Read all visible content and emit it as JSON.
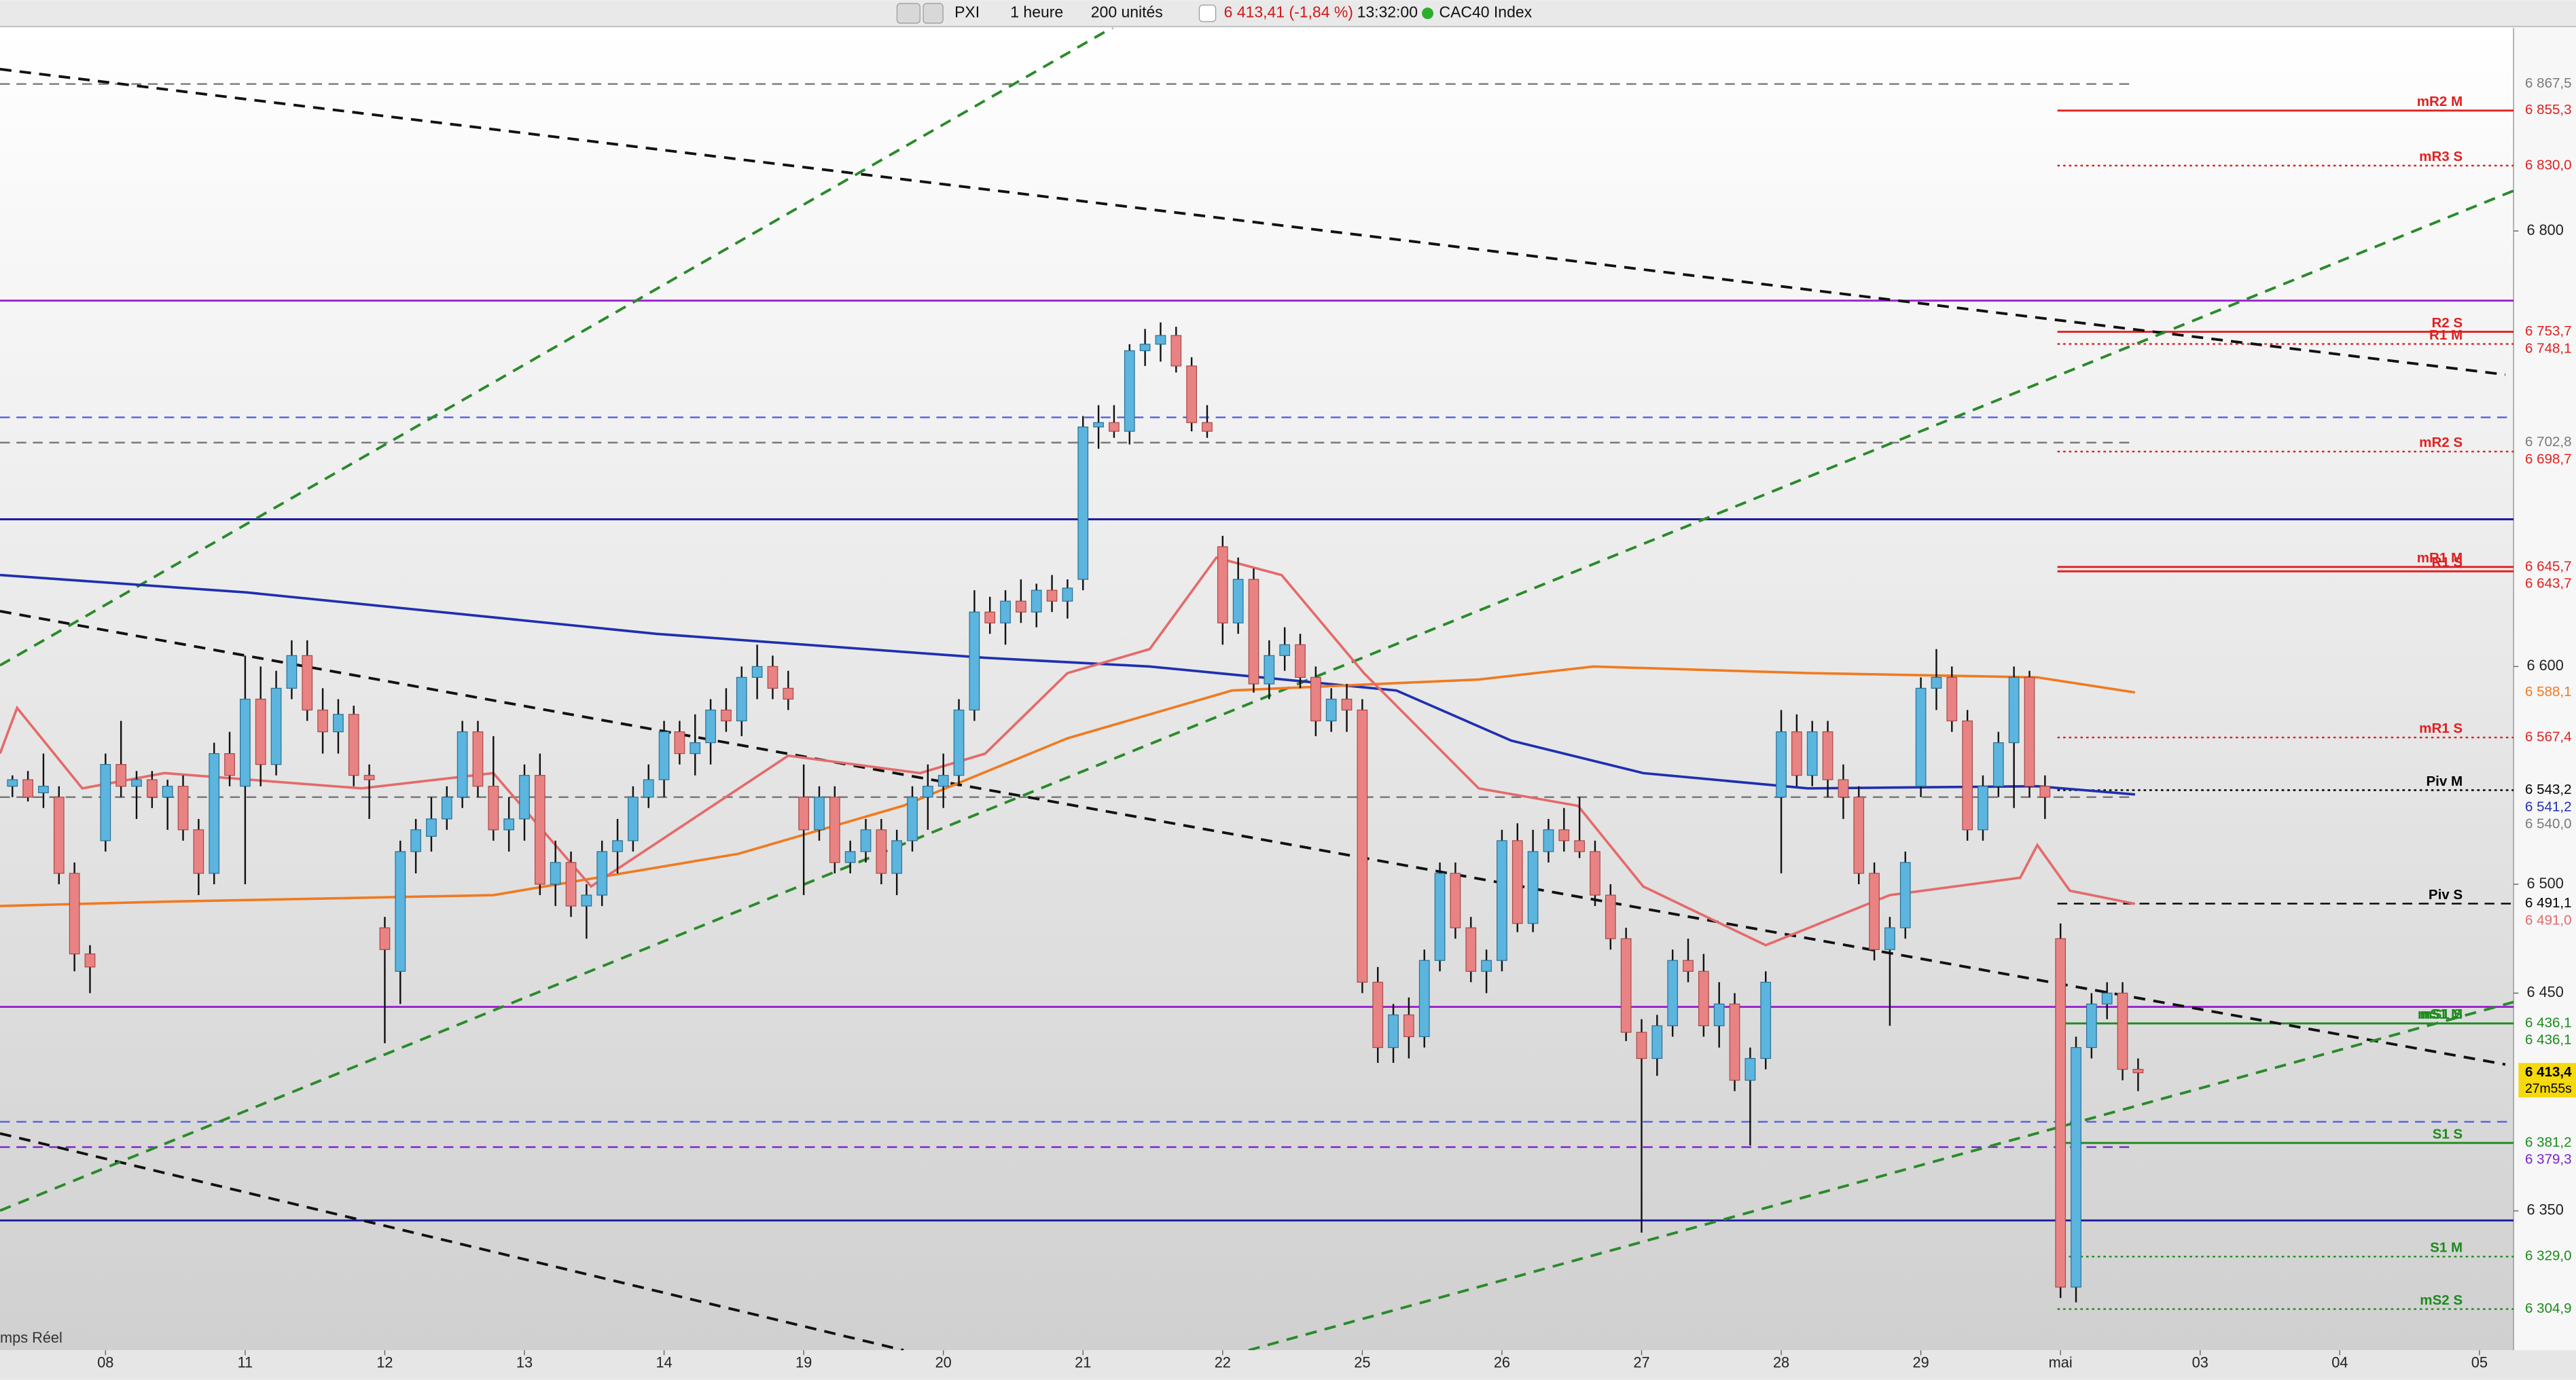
{
  "toolbar": {
    "symbol": "PXI",
    "interval": "1 heure",
    "units": "200 unités",
    "quote": "6 413,41 (-1,84 %)",
    "time": "13:32:00",
    "instrument": "CAC40 Index"
  },
  "status": "mps Réel",
  "chart_data": {
    "type": "candlestick",
    "ylim": [
      6286,
      6892.4
    ],
    "xlim": [
      -0.8,
      161.2
    ],
    "yticks": [
      {
        "value": 6350,
        "label": "6 350"
      },
      {
        "value": 6450,
        "label": "6 450"
      },
      {
        "value": 6500,
        "label": "6 500"
      },
      {
        "value": 6600,
        "label": "6 600"
      },
      {
        "value": 6800,
        "label": "6 800"
      }
    ],
    "xticks": [
      {
        "value": 6,
        "label": "08"
      },
      {
        "value": 15,
        "label": "11"
      },
      {
        "value": 24,
        "label": "12"
      },
      {
        "value": 33,
        "label": "13"
      },
      {
        "value": 42,
        "label": "14"
      },
      {
        "value": 51,
        "label": "19"
      },
      {
        "value": 60,
        "label": "20"
      },
      {
        "value": 69,
        "label": "21"
      },
      {
        "value": 78,
        "label": "22"
      },
      {
        "value": 87,
        "label": "25"
      },
      {
        "value": 96,
        "label": "26"
      },
      {
        "value": 105,
        "label": "27"
      },
      {
        "value": 114,
        "label": "28"
      },
      {
        "value": 123,
        "label": "29"
      },
      {
        "value": 132,
        "label": "mai"
      },
      {
        "value": 141,
        "label": "03"
      },
      {
        "value": 150,
        "label": "04"
      },
      {
        "value": 159,
        "label": "05"
      }
    ],
    "up_color": "#5bb5de",
    "down_color": "#e98383",
    "candles": [
      [
        6545,
        6550,
        6540,
        6548
      ],
      [
        6548,
        6552,
        6538,
        6540
      ],
      [
        6542,
        6560,
        6535,
        6545
      ],
      [
        6540,
        6545,
        6500,
        6505
      ],
      [
        6505,
        6510,
        6460,
        6468
      ],
      [
        6468,
        6472,
        6450,
        6462
      ],
      [
        6520,
        6560,
        6515,
        6555
      ],
      [
        6555,
        6575,
        6540,
        6545
      ],
      [
        6545,
        6552,
        6530,
        6548
      ],
      [
        6548,
        6552,
        6535,
        6540
      ],
      [
        6540,
        6548,
        6525,
        6545
      ],
      [
        6545,
        6550,
        6520,
        6525
      ],
      [
        6525,
        6530,
        6495,
        6505
      ],
      [
        6505,
        6565,
        6500,
        6560
      ],
      [
        6560,
        6570,
        6545,
        6550
      ],
      [
        6545,
        6605,
        6500,
        6585
      ],
      [
        6585,
        6600,
        6545,
        6555
      ],
      [
        6555,
        6598,
        6550,
        6590
      ],
      [
        6590,
        6612,
        6585,
        6605
      ],
      [
        6605,
        6612,
        6575,
        6580
      ],
      [
        6580,
        6590,
        6560,
        6570
      ],
      [
        6570,
        6585,
        6560,
        6578
      ],
      [
        6578,
        6582,
        6545,
        6550
      ],
      [
        6550,
        6555,
        6530,
        6548
      ],
      [
        6480,
        6485,
        6427,
        6470
      ],
      [
        6460,
        6520,
        6445,
        6515
      ],
      [
        6515,
        6530,
        6505,
        6525
      ],
      [
        6522,
        6540,
        6515,
        6530
      ],
      [
        6530,
        6545,
        6525,
        6540
      ],
      [
        6540,
        6575,
        6535,
        6570
      ],
      [
        6570,
        6575,
        6540,
        6545
      ],
      [
        6545,
        6568,
        6520,
        6525
      ],
      [
        6525,
        6540,
        6515,
        6530
      ],
      [
        6530,
        6555,
        6520,
        6550
      ],
      [
        6550,
        6560,
        6495,
        6500
      ],
      [
        6500,
        6520,
        6490,
        6510
      ],
      [
        6510,
        6515,
        6485,
        6490
      ],
      [
        6490,
        6500,
        6475,
        6495
      ],
      [
        6495,
        6520,
        6490,
        6515
      ],
      [
        6515,
        6530,
        6505,
        6520
      ],
      [
        6520,
        6545,
        6515,
        6540
      ],
      [
        6540,
        6555,
        6535,
        6548
      ],
      [
        6548,
        6575,
        6540,
        6570
      ],
      [
        6570,
        6575,
        6555,
        6560
      ],
      [
        6560,
        6578,
        6550,
        6565
      ],
      [
        6565,
        6585,
        6555,
        6580
      ],
      [
        6580,
        6590,
        6570,
        6575
      ],
      [
        6575,
        6600,
        6568,
        6595
      ],
      [
        6595,
        6610,
        6585,
        6600
      ],
      [
        6600,
        6605,
        6585,
        6590
      ],
      [
        6590,
        6598,
        6580,
        6585
      ],
      [
        6540,
        6555,
        6495,
        6525
      ],
      [
        6525,
        6545,
        6520,
        6540
      ],
      [
        6540,
        6545,
        6505,
        6510
      ],
      [
        6510,
        6520,
        6505,
        6515
      ],
      [
        6515,
        6530,
        6510,
        6525
      ],
      [
        6525,
        6530,
        6500,
        6505
      ],
      [
        6505,
        6525,
        6495,
        6520
      ],
      [
        6520,
        6545,
        6515,
        6540
      ],
      [
        6540,
        6555,
        6525,
        6545
      ],
      [
        6545,
        6560,
        6535,
        6550
      ],
      [
        6550,
        6585,
        6545,
        6580
      ],
      [
        6580,
        6635,
        6575,
        6625
      ],
      [
        6625,
        6632,
        6615,
        6620
      ],
      [
        6620,
        6635,
        6610,
        6630
      ],
      [
        6630,
        6640,
        6620,
        6625
      ],
      [
        6625,
        6638,
        6618,
        6635
      ],
      [
        6635,
        6642,
        6625,
        6630
      ],
      [
        6630,
        6640,
        6622,
        6636
      ],
      [
        6640,
        6715,
        6635,
        6710
      ],
      [
        6710,
        6720,
        6700,
        6712
      ],
      [
        6712,
        6720,
        6705,
        6708
      ],
      [
        6708,
        6748,
        6702,
        6745
      ],
      [
        6745,
        6755,
        6738,
        6748
      ],
      [
        6748,
        6758,
        6740,
        6752
      ],
      [
        6752,
        6756,
        6735,
        6738
      ],
      [
        6738,
        6742,
        6708,
        6712
      ],
      [
        6712,
        6720,
        6705,
        6708
      ],
      [
        6655,
        6660,
        6610,
        6620
      ],
      [
        6620,
        6650,
        6615,
        6640
      ],
      [
        6640,
        6645,
        6588,
        6592
      ],
      [
        6592,
        6612,
        6585,
        6605
      ],
      [
        6605,
        6618,
        6598,
        6610
      ],
      [
        6610,
        6615,
        6590,
        6595
      ],
      [
        6595,
        6600,
        6568,
        6575
      ],
      [
        6575,
        6590,
        6570,
        6585
      ],
      [
        6585,
        6592,
        6570,
        6580
      ],
      [
        6580,
        6585,
        6450,
        6455
      ],
      [
        6455,
        6462,
        6418,
        6425
      ],
      [
        6425,
        6445,
        6418,
        6440
      ],
      [
        6440,
        6448,
        6420,
        6430
      ],
      [
        6430,
        6470,
        6425,
        6465
      ],
      [
        6465,
        6510,
        6460,
        6505
      ],
      [
        6505,
        6510,
        6475,
        6480
      ],
      [
        6480,
        6485,
        6455,
        6460
      ],
      [
        6460,
        6470,
        6450,
        6465
      ],
      [
        6465,
        6525,
        6460,
        6520
      ],
      [
        6520,
        6528,
        6478,
        6482
      ],
      [
        6482,
        6525,
        6478,
        6515
      ],
      [
        6515,
        6530,
        6510,
        6525
      ],
      [
        6525,
        6535,
        6515,
        6520
      ],
      [
        6520,
        6540,
        6512,
        6515
      ],
      [
        6515,
        6520,
        6490,
        6495
      ],
      [
        6495,
        6500,
        6470,
        6475
      ],
      [
        6475,
        6480,
        6428,
        6432
      ],
      [
        6432,
        6438,
        6340,
        6420
      ],
      [
        6420,
        6440,
        6412,
        6435
      ],
      [
        6435,
        6470,
        6430,
        6465
      ],
      [
        6465,
        6475,
        6455,
        6460
      ],
      [
        6460,
        6468,
        6430,
        6435
      ],
      [
        6435,
        6455,
        6425,
        6445
      ],
      [
        6445,
        6450,
        6405,
        6410
      ],
      [
        6410,
        6425,
        6380,
        6420
      ],
      [
        6420,
        6460,
        6415,
        6455
      ],
      [
        6540,
        6580,
        6505,
        6570
      ],
      [
        6570,
        6578,
        6545,
        6550
      ],
      [
        6550,
        6575,
        6545,
        6570
      ],
      [
        6570,
        6575,
        6540,
        6548
      ],
      [
        6548,
        6555,
        6530,
        6540
      ],
      [
        6540,
        6545,
        6500,
        6505
      ],
      [
        6505,
        6510,
        6465,
        6470
      ],
      [
        6470,
        6485,
        6435,
        6480
      ],
      [
        6480,
        6515,
        6475,
        6510
      ],
      [
        6545,
        6595,
        6540,
        6590
      ],
      [
        6590,
        6608,
        6580,
        6595
      ],
      [
        6595,
        6600,
        6570,
        6575
      ],
      [
        6575,
        6580,
        6520,
        6525
      ],
      [
        6525,
        6550,
        6520,
        6545
      ],
      [
        6545,
        6570,
        6540,
        6565
      ],
      [
        6565,
        6600,
        6535,
        6595
      ],
      [
        6595,
        6598,
        6540,
        6545
      ],
      [
        6545,
        6550,
        6530,
        6540
      ],
      [
        6475,
        6482,
        6310,
        6315
      ],
      [
        6315,
        6430,
        6308,
        6425
      ],
      [
        6425,
        6450,
        6420,
        6445
      ],
      [
        6445,
        6455,
        6438,
        6450
      ],
      [
        6450,
        6455,
        6410,
        6415
      ],
      [
        6415,
        6420,
        6405,
        6413.41
      ]
    ],
    "last_label": "6 413,4",
    "countdown": "27m55s",
    "last_color": "#f5d90a",
    "moving_averages": [
      {
        "color": "#1f2fb0",
        "x": [
          -0.8,
          15.1,
          41.5,
          62.7,
          73.3,
          89.2,
          96.6,
          105.1,
          115.7,
          130.5,
          136.8
        ],
        "values": [
          6642,
          6634,
          6615,
          6604,
          6600,
          6589,
          6566,
          6551,
          6544,
          6545,
          6541.2
        ],
        "label": "6 541,2"
      },
      {
        "color": "#f07a20",
        "x": [
          -0.8,
          9.8,
          31,
          46.8,
          57.4,
          68,
          78.6,
          94.5,
          101.9,
          115.7,
          130.5,
          136.8
        ],
        "values": [
          6490,
          6492,
          6495,
          6514,
          6536,
          6567,
          6589,
          6594,
          6600,
          6597,
          6595,
          6588.1
        ],
        "label": "6 588,1"
      },
      {
        "color": "#e56a6a",
        "x": [
          -0.8,
          0.3,
          4.5,
          9.8,
          22.5,
          31,
          37.3,
          50,
          58.5,
          62.7,
          68,
          73.3,
          77.6,
          81.8,
          87.1,
          94.5,
          100.9,
          105.1,
          113,
          121,
          129.4,
          130.5,
          132.6,
          136.8
        ],
        "values": [
          6560,
          6581,
          6544,
          6551,
          6544,
          6551,
          6499,
          6559,
          6551,
          6560,
          6597,
          6608,
          6650,
          6642,
          6597,
          6544,
          6536,
          6499,
          6472,
          6495,
          6503,
          6518,
          6497,
          6491.0
        ],
        "label": "6 491,0"
      }
    ],
    "levels": [
      {
        "value": 6867.5,
        "color": "#7a7a7a",
        "style": "dashed",
        "from": -0.8,
        "to": 136.8,
        "label": "6 867,5"
      },
      {
        "value": 6855.3,
        "color": "#e02020",
        "style": "solid",
        "from": 131.8,
        "to": 161.2,
        "name": "mR2 M",
        "label": "6 855,3"
      },
      {
        "value": 6830.0,
        "color": "#e02020",
        "style": "dotted",
        "from": 131.8,
        "to": 161.2,
        "name": "mR3 S",
        "label": "6 830,0"
      },
      {
        "value": 6768,
        "color": "#9b1fd0",
        "style": "solid",
        "from": -0.8,
        "to": 161.2
      },
      {
        "value": 6753.7,
        "color": "#e02020",
        "style": "solid",
        "from": 131.8,
        "to": 161.2,
        "name": "R2 S",
        "label": "6 753,7"
      },
      {
        "value": 6748.1,
        "color": "#e02020",
        "style": "dotted",
        "from": 131.8,
        "to": 161.2,
        "name": "R1 M",
        "label": "6 748,1"
      },
      {
        "value": 6714.4,
        "color": "#5560e0",
        "style": "dashed",
        "from": -0.8,
        "to": 161.2
      },
      {
        "value": 6702.8,
        "color": "#7a7a7a",
        "style": "dashed",
        "from": -0.8,
        "to": 136.8,
        "label": "6 702,8"
      },
      {
        "value": 6698.7,
        "color": "#e02020",
        "style": "dotted",
        "from": 131.8,
        "to": 161.2,
        "name": "mR2 S",
        "label": "6 698,7"
      },
      {
        "value": 6667.6,
        "color": "#1a1aa0",
        "style": "solid",
        "from": -0.8,
        "to": 161.2
      },
      {
        "value": 6645.7,
        "color": "#e02020",
        "style": "solid",
        "from": 131.8,
        "to": 161.2,
        "name": "mR1 M",
        "label": "6 645,7"
      },
      {
        "value": 6643.7,
        "color": "#e02020",
        "style": "solid",
        "from": 131.8,
        "to": 161.2,
        "name": "R1 S",
        "label": "6 643,7"
      },
      {
        "value": 6567.4,
        "color": "#e02020",
        "style": "dotted",
        "from": 131.8,
        "to": 161.2,
        "name": "mR1 S",
        "label": "6 567,4"
      },
      {
        "value": 6543.2,
        "color": "#000000",
        "style": "dotted",
        "from": 131.8,
        "to": 161.2,
        "name": "Piv M",
        "label": "6 543,2"
      },
      {
        "value": 6540.0,
        "color": "#7a7a7a",
        "style": "dashed",
        "from": -0.8,
        "to": 136.8,
        "label": "6 540,0"
      },
      {
        "value": 6491.1,
        "color": "#000000",
        "style": "dashed",
        "from": 131.8,
        "to": 161.2,
        "name": "Piv S",
        "label": "6 491,1"
      },
      {
        "value": 6443.7,
        "color": "#9b1fd0",
        "style": "solid",
        "from": -0.8,
        "to": 161.2
      },
      {
        "value": 6436.1,
        "color": "#1c8a1c",
        "style": "solid",
        "from": 131.8,
        "to": 161.2,
        "name": "mS1 M",
        "label": "6 436,1"
      },
      {
        "value": 6436.1,
        "color": "#1c8a1c",
        "style": "dotted",
        "from": 131.8,
        "to": 161.2,
        "name": "mS1 S",
        "label": "6 436,1"
      },
      {
        "value": 6390.9,
        "color": "#5560e0",
        "style": "dashed",
        "from": -0.8,
        "to": 161.2
      },
      {
        "value": 6381.2,
        "color": "#1c8a1c",
        "style": "solid",
        "from": 131.8,
        "to": 161.2,
        "name": "S1 S",
        "label": "6 381,2"
      },
      {
        "value": 6379.3,
        "color": "#7a22c8",
        "style": "dashed",
        "from": -0.8,
        "to": 136.8,
        "label": "6 379,3"
      },
      {
        "value": 6345.6,
        "color": "#1a1aa0",
        "style": "solid",
        "from": -0.8,
        "to": 161.2
      },
      {
        "value": 6329.0,
        "color": "#1c8a1c",
        "style": "dotted",
        "from": 131.8,
        "to": 161.2,
        "name": "S1 M",
        "label": "6 329,0"
      },
      {
        "value": 6304.9,
        "color": "#1c8a1c",
        "style": "dotted",
        "from": 131.8,
        "to": 161.2,
        "name": "mS2 S",
        "label": "6 304,9"
      }
    ]
  }
}
